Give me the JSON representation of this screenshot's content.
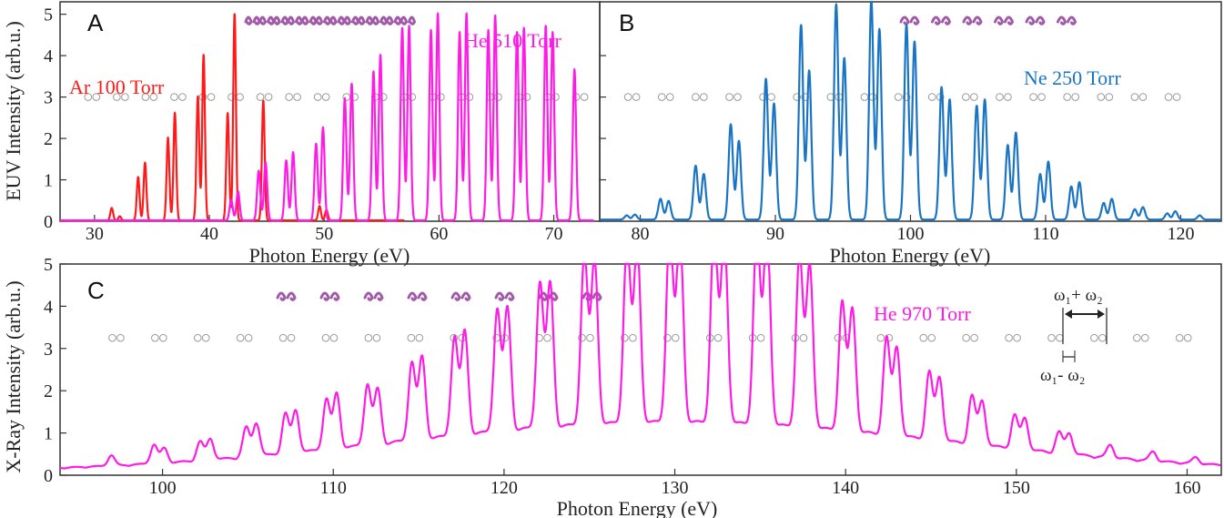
{
  "chart_data": [
    {
      "panel": "A",
      "type": "line",
      "xlabel": "Photon Energy (eV)",
      "ylabel": "EUV Intensity (arb.u.)",
      "xlim": [
        27,
        74
      ],
      "ylim": [
        0,
        5.3
      ],
      "xticks": [
        30,
        40,
        50,
        60,
        70
      ],
      "yticks": [
        0,
        1,
        2,
        3,
        4,
        5
      ],
      "series": [
        {
          "name": "Ar 100 Torr",
          "color": "#ff1a1a",
          "width": 0.12,
          "xmax": 57,
          "peaks": [
            {
              "x": 31.5,
              "y": 0.3
            },
            {
              "x": 32.2,
              "y": 0.1
            },
            {
              "x": 33.8,
              "y": 1.05
            },
            {
              "x": 34.4,
              "y": 1.4
            },
            {
              "x": 36.4,
              "y": 2.0
            },
            {
              "x": 37.0,
              "y": 2.6
            },
            {
              "x": 39.0,
              "y": 3.0
            },
            {
              "x": 39.5,
              "y": 4.0
            },
            {
              "x": 41.6,
              "y": 2.6
            },
            {
              "x": 42.2,
              "y": 5.0
            },
            {
              "x": 44.7,
              "y": 2.9
            },
            {
              "x": 49.6,
              "y": 0.35
            },
            {
              "x": 50.2,
              "y": 0.25
            }
          ]
        },
        {
          "name": "He 510 Torr",
          "color": "#ff1ae6",
          "width": 0.14,
          "xmax": 73.5,
          "peaks": [
            {
              "x": 41.9,
              "y": 0.5
            },
            {
              "x": 42.5,
              "y": 0.7
            },
            {
              "x": 44.3,
              "y": 1.2
            },
            {
              "x": 44.9,
              "y": 1.4
            },
            {
              "x": 46.7,
              "y": 1.45
            },
            {
              "x": 47.3,
              "y": 1.65
            },
            {
              "x": 49.3,
              "y": 1.85
            },
            {
              "x": 49.9,
              "y": 2.25
            },
            {
              "x": 51.8,
              "y": 2.95
            },
            {
              "x": 52.4,
              "y": 3.3
            },
            {
              "x": 54.3,
              "y": 3.6
            },
            {
              "x": 54.9,
              "y": 4.0
            },
            {
              "x": 56.8,
              "y": 4.65
            },
            {
              "x": 57.4,
              "y": 4.7
            },
            {
              "x": 59.3,
              "y": 4.6
            },
            {
              "x": 59.9,
              "y": 5.0
            },
            {
              "x": 61.8,
              "y": 4.55
            },
            {
              "x": 62.4,
              "y": 5.0
            },
            {
              "x": 64.3,
              "y": 4.6
            },
            {
              "x": 64.9,
              "y": 4.95
            },
            {
              "x": 66.8,
              "y": 4.55
            },
            {
              "x": 67.4,
              "y": 4.65
            },
            {
              "x": 69.3,
              "y": 4.7
            },
            {
              "x": 69.9,
              "y": 4.55
            },
            {
              "x": 71.8,
              "y": 3.65
            }
          ]
        }
      ],
      "circle_pairs_x": [
        29.8,
        32.3,
        34.8,
        37.3,
        39.8,
        42.3,
        44.8,
        47.3,
        49.8,
        52.3,
        54.8,
        57.3,
        59.8,
        62.3,
        64.8,
        67.3,
        69.8,
        72.3
      ],
      "circle_y": 3.0,
      "arc_icons": 12,
      "labels": [
        "Ar 100 Torr",
        "He 510 Torr"
      ]
    },
    {
      "panel": "B",
      "type": "line",
      "xlabel": "Photon Energy (eV)",
      "xlim": [
        77,
        123
      ],
      "ylim": [
        0,
        5.3
      ],
      "xticks": [
        80,
        90,
        100,
        110,
        120
      ],
      "series": [
        {
          "name": "Ne 250 Torr",
          "color": "#1a74c4",
          "width": 0.16,
          "baseline": 0.04,
          "peaks": [
            {
              "x": 79.0,
              "y": 0.1
            },
            {
              "x": 79.6,
              "y": 0.12
            },
            {
              "x": 81.5,
              "y": 0.5
            },
            {
              "x": 82.1,
              "y": 0.45
            },
            {
              "x": 84.1,
              "y": 1.3
            },
            {
              "x": 84.7,
              "y": 1.1
            },
            {
              "x": 86.7,
              "y": 2.3
            },
            {
              "x": 87.3,
              "y": 1.9
            },
            {
              "x": 89.3,
              "y": 3.4
            },
            {
              "x": 89.9,
              "y": 2.8
            },
            {
              "x": 91.9,
              "y": 4.7
            },
            {
              "x": 92.5,
              "y": 3.6
            },
            {
              "x": 94.5,
              "y": 5.2
            },
            {
              "x": 95.1,
              "y": 3.9
            },
            {
              "x": 97.1,
              "y": 5.3
            },
            {
              "x": 97.7,
              "y": 4.6
            },
            {
              "x": 99.7,
              "y": 4.7
            },
            {
              "x": 100.3,
              "y": 4.3
            },
            {
              "x": 102.3,
              "y": 3.2
            },
            {
              "x": 102.9,
              "y": 2.9
            },
            {
              "x": 104.9,
              "y": 2.75
            },
            {
              "x": 105.5,
              "y": 2.9
            },
            {
              "x": 107.2,
              "y": 1.8
            },
            {
              "x": 107.8,
              "y": 2.1
            },
            {
              "x": 109.6,
              "y": 1.1
            },
            {
              "x": 110.2,
              "y": 1.4
            },
            {
              "x": 111.9,
              "y": 0.8
            },
            {
              "x": 112.5,
              "y": 0.9
            },
            {
              "x": 114.3,
              "y": 0.4
            },
            {
              "x": 114.9,
              "y": 0.5
            },
            {
              "x": 116.6,
              "y": 0.25
            },
            {
              "x": 117.2,
              "y": 0.3
            },
            {
              "x": 119.0,
              "y": 0.15
            },
            {
              "x": 119.6,
              "y": 0.2
            },
            {
              "x": 121.4,
              "y": 0.1
            }
          ]
        }
      ],
      "circle_pairs_x": [
        79.4,
        81.9,
        84.4,
        86.9,
        89.4,
        91.9,
        94.4,
        96.9,
        99.4,
        101.9,
        104.4,
        106.9,
        109.4,
        111.9,
        114.4,
        116.9,
        119.4
      ],
      "circle_y": 3.0,
      "arc_icons": 6,
      "labels": [
        "Ne 250 Torr"
      ]
    },
    {
      "panel": "C",
      "type": "line",
      "xlabel": "Photon Energy (eV)",
      "ylabel": "X-Ray Intensity (arb.u.)",
      "xlim": [
        94,
        162
      ],
      "ylim": [
        0,
        5
      ],
      "xticks": [
        100,
        110,
        120,
        130,
        140,
        150,
        160
      ],
      "yticks": [
        0,
        1,
        2,
        3,
        4,
        5
      ],
      "series": [
        {
          "name": "He 970 Torr",
          "color": "#ff1ae6",
          "width": 0.2,
          "envelope": {
            "center": 130,
            "sigma": 16,
            "amp": 1.1
          },
          "peaks": [
            {
              "x": 97.0,
              "y": 0.25
            },
            {
              "x": 99.5,
              "y": 0.45
            },
            {
              "x": 100.1,
              "y": 0.35
            },
            {
              "x": 102.2,
              "y": 0.45
            },
            {
              "x": 102.8,
              "y": 0.5
            },
            {
              "x": 104.9,
              "y": 0.7
            },
            {
              "x": 105.5,
              "y": 0.8
            },
            {
              "x": 107.2,
              "y": 0.95
            },
            {
              "x": 107.8,
              "y": 1.0
            },
            {
              "x": 109.6,
              "y": 1.2
            },
            {
              "x": 110.2,
              "y": 1.3
            },
            {
              "x": 112.0,
              "y": 1.45
            },
            {
              "x": 112.6,
              "y": 1.3
            },
            {
              "x": 114.6,
              "y": 1.85
            },
            {
              "x": 115.2,
              "y": 1.95
            },
            {
              "x": 117.1,
              "y": 2.35
            },
            {
              "x": 117.7,
              "y": 2.45
            },
            {
              "x": 119.6,
              "y": 2.9
            },
            {
              "x": 120.2,
              "y": 2.9
            },
            {
              "x": 122.1,
              "y": 3.45
            },
            {
              "x": 122.7,
              "y": 3.4
            },
            {
              "x": 124.7,
              "y": 4.05
            },
            {
              "x": 125.3,
              "y": 3.9
            },
            {
              "x": 127.2,
              "y": 4.35
            },
            {
              "x": 127.8,
              "y": 4.2
            },
            {
              "x": 129.7,
              "y": 4.6
            },
            {
              "x": 130.3,
              "y": 4.45
            },
            {
              "x": 132.3,
              "y": 4.6
            },
            {
              "x": 132.9,
              "y": 4.45
            },
            {
              "x": 134.8,
              "y": 4.6
            },
            {
              "x": 135.4,
              "y": 4.6
            },
            {
              "x": 137.3,
              "y": 4.1
            },
            {
              "x": 137.9,
              "y": 3.85
            },
            {
              "x": 139.8,
              "y": 3.05
            },
            {
              "x": 140.4,
              "y": 2.9
            },
            {
              "x": 142.4,
              "y": 2.3
            },
            {
              "x": 143.0,
              "y": 2.1
            },
            {
              "x": 144.9,
              "y": 1.6
            },
            {
              "x": 145.5,
              "y": 1.5
            },
            {
              "x": 147.4,
              "y": 1.15
            },
            {
              "x": 148.0,
              "y": 1.05
            },
            {
              "x": 149.9,
              "y": 0.8
            },
            {
              "x": 150.5,
              "y": 0.75
            },
            {
              "x": 152.5,
              "y": 0.5
            },
            {
              "x": 153.1,
              "y": 0.5
            },
            {
              "x": 155.5,
              "y": 0.3
            },
            {
              "x": 158.0,
              "y": 0.22
            },
            {
              "x": 160.5,
              "y": 0.15
            }
          ]
        }
      ],
      "circle_pairs_x": [
        97.3,
        99.8,
        102.3,
        104.8,
        107.3,
        109.8,
        112.3,
        114.8,
        117.3,
        119.8,
        122.3,
        124.8,
        127.3,
        129.8,
        132.3,
        134.8,
        137.3,
        139.8,
        142.3,
        144.8,
        147.3,
        149.8,
        152.3,
        154.8,
        157.3,
        159.8
      ],
      "circle_y": 3.25,
      "arc_icons": 8,
      "labels": [
        "He 970 Torr"
      ],
      "annotations": {
        "sum": "ω₁+ ω₂",
        "diff": "ω₁- ω₂"
      }
    }
  ],
  "colors": {
    "arc_icon": "#a05aa8",
    "circle": "#999999",
    "axis": "#333333"
  }
}
